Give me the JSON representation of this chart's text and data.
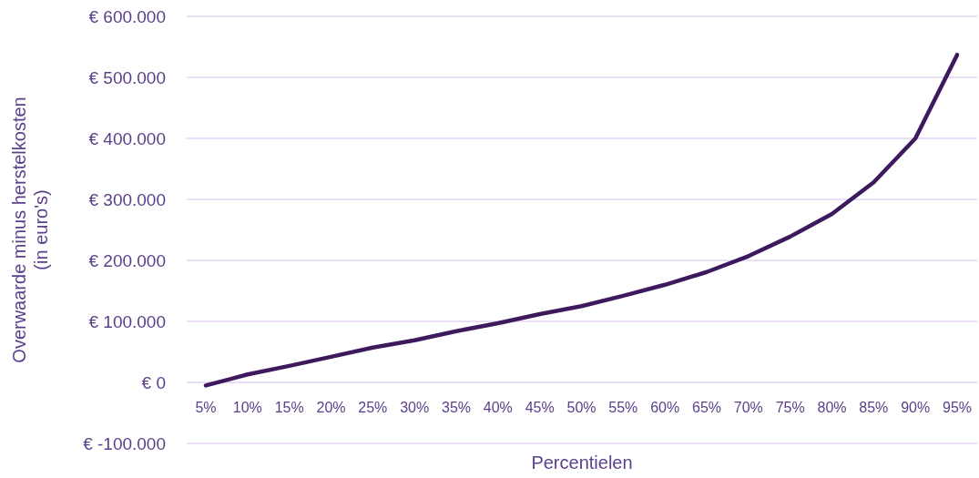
{
  "chart_data": {
    "type": "line",
    "xlabel": "Percentielen",
    "ylabel": "Overwaarde minus herstelkosten\n(in euro's)",
    "categories": [
      "5%",
      "10%",
      "15%",
      "20%",
      "25%",
      "30%",
      "35%",
      "40%",
      "45%",
      "50%",
      "55%",
      "60%",
      "65%",
      "70%",
      "75%",
      "80%",
      "85%",
      "90%",
      "95%"
    ],
    "series": [
      {
        "color": "#3d1a5e",
        "values": [
          -5000,
          13000,
          27000,
          42000,
          57000,
          69000,
          84000,
          97000,
          112000,
          125000,
          142000,
          160000,
          181000,
          207000,
          239000,
          276000,
          328000,
          400000,
          537000
        ]
      }
    ],
    "ylim": [
      -100000,
      600000
    ],
    "yticks": [
      {
        "value": -100000,
        "label": "€ -100.000"
      },
      {
        "value": 0,
        "label": "€ 0"
      },
      {
        "value": 100000,
        "label": "€ 100.000"
      },
      {
        "value": 200000,
        "label": "€ 200.000"
      },
      {
        "value": 300000,
        "label": "€ 300.000"
      },
      {
        "value": 400000,
        "label": "€ 400.000"
      },
      {
        "value": 500000,
        "label": "€ 500.000"
      },
      {
        "value": 600000,
        "label": "€ 600.000"
      }
    ],
    "grid": "y",
    "line_style": "solid",
    "marker": "none"
  }
}
